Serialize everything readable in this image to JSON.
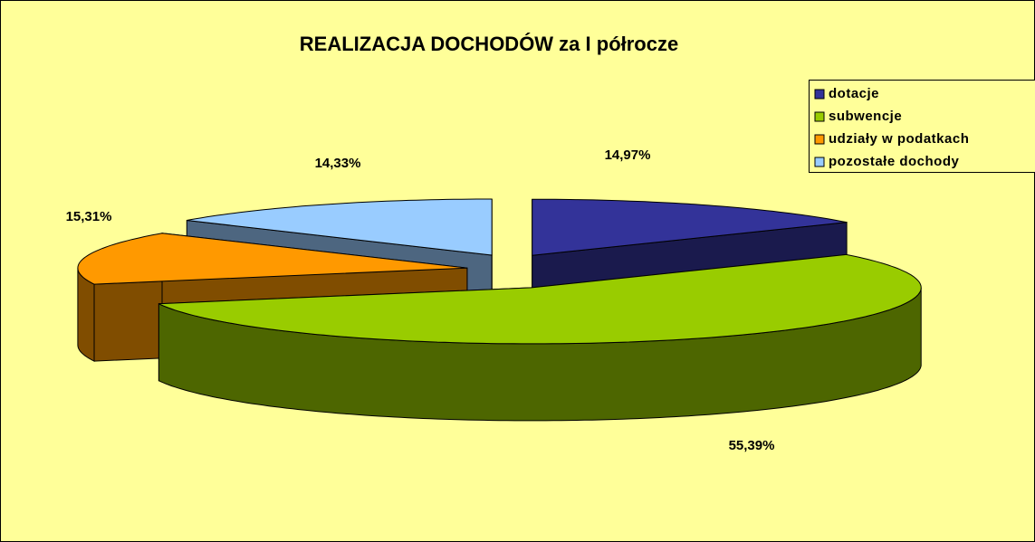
{
  "chart_data": {
    "type": "pie",
    "title": "REALIZACJA DOCHODÓW za I półrocze",
    "categories": [
      "dotacje",
      "subwencje",
      "udziały w podatkach",
      "pozostałe dochody"
    ],
    "values": [
      14.97,
      55.39,
      15.31,
      14.33
    ],
    "value_labels": [
      "14,97%",
      "55,39%",
      "15,31%",
      "14,33%"
    ],
    "colors": [
      "#333399",
      "#99cc00",
      "#ff9900",
      "#99ccff"
    ],
    "legend": "top-right"
  }
}
